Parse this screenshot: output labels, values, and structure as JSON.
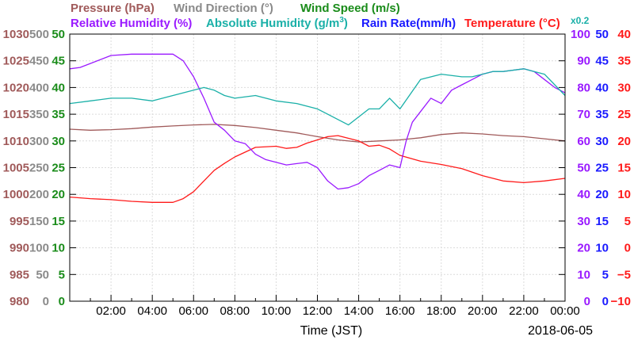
{
  "chart_data": {
    "type": "line",
    "xlabel": "Time (JST)",
    "date": "2018-06-05",
    "x_ticks": [
      "02:00",
      "04:00",
      "06:00",
      "08:00",
      "10:00",
      "12:00",
      "14:00",
      "16:00",
      "18:00",
      "20:00",
      "22:00",
      "00:00"
    ],
    "grid": true,
    "axes": [
      {
        "name": "Pressure (hPa)",
        "color": "#a05a5a",
        "ticks": [
          "980",
          "985",
          "990",
          "995",
          "1000",
          "1005",
          "1010",
          "1015",
          "1020",
          "1025",
          "1030"
        ]
      },
      {
        "name": "Wind Direction (°)",
        "color": "#8a8a8a",
        "ticks": [
          "0",
          "50",
          "100",
          "150",
          "200",
          "250",
          "300",
          "350",
          "400",
          "450",
          "500"
        ]
      },
      {
        "name": "Wind Speed (m/s)",
        "color": "#1a8c1a",
        "ticks": [
          "0",
          "5",
          "10",
          "15",
          "20",
          "25",
          "30",
          "35",
          "40",
          "45",
          "50"
        ]
      },
      {
        "name": "Relative Humidity (%)",
        "color": "#9a1aff",
        "ticks": [
          "0",
          "10",
          "20",
          "30",
          "40",
          "50",
          "60",
          "70",
          "80",
          "90",
          "100"
        ]
      },
      {
        "name": "Absolute Humidity",
        "color": "#1ab0a8",
        "ticks": []
      },
      {
        "name": "Rain Rate(mm/h)",
        "color": "#1a1aff",
        "ticks": [
          "0",
          "5",
          "10",
          "15",
          "20",
          "25",
          "30",
          "35",
          "40",
          "45",
          "50"
        ]
      },
      {
        "name": "Temperature (°C)",
        "color": "#ff1a1a",
        "ticks": [
          "−10",
          "−5",
          "0",
          "5",
          "10",
          "15",
          "20",
          "25",
          "30",
          "35",
          "40"
        ]
      }
    ],
    "legend": {
      "row1": [
        "Pressure (hPa)",
        "Wind Direction (°)",
        "Wind Speed (m/s)"
      ],
      "row2": [
        "Relative Humidity (%)",
        "Absolute Humidity (g/m",
        "3",
        ")",
        "Rain Rate(mm/h)",
        "Temperature (°C)",
        "x0.2"
      ]
    },
    "series": [
      {
        "name": "Pressure",
        "color": "#a05a5a",
        "axis": "Pressure (hPa)",
        "x": [
          0,
          1,
          2,
          3,
          4,
          5,
          6,
          7,
          8,
          9,
          10,
          11,
          12,
          13,
          14,
          15,
          16,
          17,
          18,
          19,
          20,
          21,
          22,
          23,
          24
        ],
        "y": [
          1012.2,
          1012.0,
          1012.1,
          1012.3,
          1012.6,
          1012.8,
          1013.0,
          1013.1,
          1012.9,
          1012.5,
          1012.0,
          1011.5,
          1010.8,
          1010.2,
          1009.8,
          1010.0,
          1010.2,
          1010.6,
          1011.2,
          1011.5,
          1011.3,
          1011.0,
          1010.8,
          1010.4,
          1010.0
        ]
      },
      {
        "name": "Temperature",
        "color": "#ff1a1a",
        "axis": "Temperature (°C)",
        "x": [
          0,
          1,
          2,
          3,
          4,
          5,
          5.5,
          6,
          6.5,
          7,
          7.5,
          8,
          9,
          10,
          10.5,
          11,
          11.5,
          12,
          12.5,
          13,
          14,
          14.5,
          15,
          15.5,
          16,
          17,
          18,
          19,
          20,
          21,
          22,
          23,
          24
        ],
        "y": [
          9.5,
          9.2,
          9.0,
          8.7,
          8.5,
          8.5,
          9.2,
          10.5,
          12.5,
          14.5,
          15.8,
          17.0,
          18.8,
          19.0,
          18.6,
          18.8,
          19.6,
          20.2,
          20.8,
          21.0,
          20.0,
          19.0,
          19.2,
          18.5,
          17.3,
          16.2,
          15.6,
          14.8,
          13.5,
          12.5,
          12.2,
          12.5,
          13.0
        ]
      },
      {
        "name": "Relative Humidity",
        "color": "#9a1aff",
        "axis": "Relative Humidity (%)",
        "x": [
          0,
          0.5,
          1,
          2,
          3,
          4,
          5,
          5.5,
          6,
          6.5,
          7,
          7.5,
          8,
          8.5,
          9,
          9.5,
          10,
          10.5,
          11,
          11.5,
          12,
          12.5,
          13,
          13.5,
          14,
          14.5,
          15,
          15.5,
          16,
          16.3,
          16.6,
          17,
          17.5,
          18,
          18.5,
          19,
          19.5,
          20,
          20.5,
          21,
          21.5,
          22,
          22.5,
          23,
          23.5,
          24
        ],
        "y": [
          87,
          87.5,
          89,
          92,
          92.5,
          92.5,
          92.5,
          90,
          84,
          76,
          67,
          64,
          60,
          59,
          55,
          53,
          52,
          51,
          51.5,
          52,
          50,
          45,
          42,
          42.5,
          44,
          47,
          49,
          51,
          50,
          60,
          67,
          71,
          76,
          74,
          79,
          81,
          83,
          85,
          86,
          86,
          86.5,
          87,
          86,
          83,
          80,
          78
        ]
      },
      {
        "name": "Absolute Humidity",
        "color": "#1ab0a8",
        "axis": "Absolute Humidity",
        "x": [
          0,
          1,
          2,
          3,
          4,
          5,
          6,
          6.5,
          7,
          7.5,
          8,
          9,
          10,
          11,
          11.5,
          12,
          12.5,
          13,
          13.5,
          14,
          14.5,
          15,
          15.5,
          16,
          17,
          18,
          19,
          19.5,
          20,
          20.5,
          21,
          22,
          22.5,
          23,
          23.5,
          24
        ],
        "y": [
          74,
          75,
          76,
          76,
          75,
          77,
          79,
          80,
          79,
          77,
          76,
          77,
          75,
          74,
          73,
          72,
          70,
          68,
          66,
          69,
          72,
          72,
          76,
          72,
          83,
          85,
          84,
          84,
          85,
          86,
          86,
          87,
          86,
          85,
          81,
          77
        ]
      }
    ]
  }
}
